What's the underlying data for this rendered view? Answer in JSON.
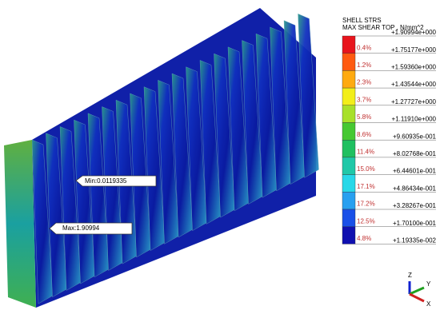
{
  "legend": {
    "title": [
      "SHELL STRS",
      "MAX SHEAR TOP , N/mm^2"
    ],
    "levels": [
      "+1.90994e+000",
      "+1.75177e+000",
      "+1.59360e+000",
      "+1.43544e+000",
      "+1.27727e+000",
      "+1.11910e+000",
      "+9.60935e-001",
      "+8.02768e-001",
      "+6.44601e-001",
      "+4.86434e-001",
      "+3.28267e-001",
      "+1.70100e-001",
      "+1.19335e-002"
    ],
    "bands": [
      {
        "percent": "0.4%",
        "color": "#e8141c"
      },
      {
        "percent": "1.2%",
        "color": "#ff5a10"
      },
      {
        "percent": "2.3%",
        "color": "#ffaa10"
      },
      {
        "percent": "3.7%",
        "color": "#f2ee1a"
      },
      {
        "percent": "5.8%",
        "color": "#a8e02a"
      },
      {
        "percent": "8.6%",
        "color": "#46c832"
      },
      {
        "percent": "11.4%",
        "color": "#20c060"
      },
      {
        "percent": "15.0%",
        "color": "#20c8a8"
      },
      {
        "percent": "17.1%",
        "color": "#28d8e8"
      },
      {
        "percent": "17.2%",
        "color": "#28a0f0"
      },
      {
        "percent": "12.5%",
        "color": "#1a50e8"
      },
      {
        "percent": "4.8%",
        "color": "#1010b0"
      }
    ]
  },
  "annotations": {
    "min": "Min:0.0119335",
    "max": "Max:1.90994"
  },
  "triad": {
    "z": "Z",
    "y": "Y",
    "x": "X"
  }
}
